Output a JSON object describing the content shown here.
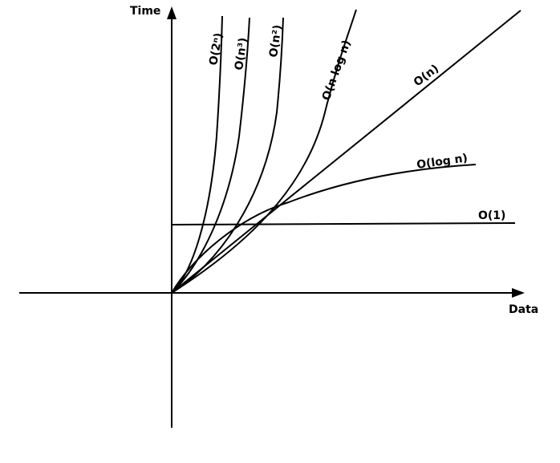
{
  "axes": {
    "y_label": "Time",
    "x_label": "Data"
  },
  "curves": [
    {
      "id": "exp",
      "label": "O(2ⁿ)"
    },
    {
      "id": "cubic",
      "label": "O(n³)"
    },
    {
      "id": "quad",
      "label": "O(n²)"
    },
    {
      "id": "nlogn",
      "label": "O(n log n)"
    },
    {
      "id": "linear",
      "label": "O(n)"
    },
    {
      "id": "log",
      "label": "O(log n)"
    },
    {
      "id": "const",
      "label": "O(1)"
    }
  ]
}
